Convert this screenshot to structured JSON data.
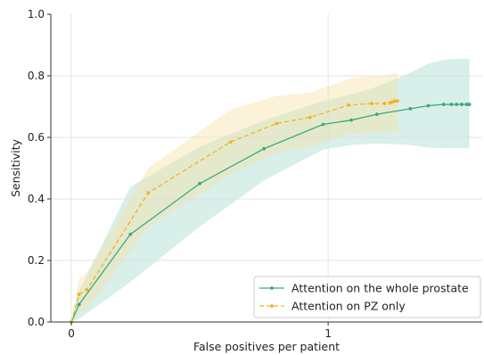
{
  "chart_data": {
    "type": "line",
    "title": "",
    "xlabel": "False positives per patient",
    "ylabel": "Sensitivity",
    "xlim": [
      -0.08,
      1.6
    ],
    "ylim": [
      0.0,
      1.0
    ],
    "xticks": [
      0,
      1
    ],
    "xtick_labels": [
      "0",
      "1"
    ],
    "yticks": [
      0.0,
      0.2,
      0.4,
      0.6,
      0.8,
      1.0
    ],
    "ytick_labels": [
      "0.0",
      "0.2",
      "0.4",
      "0.6",
      "0.8",
      "1.0"
    ],
    "grid": true,
    "legend_position": "bottom-right",
    "series": [
      {
        "name": "Attention on the whole prostate",
        "color": "#3aaa7e",
        "band_color": "#a8dcd0",
        "linestyle": "solid",
        "x": [
          0.0,
          0.03,
          0.23,
          0.5,
          0.75,
          0.98,
          1.09,
          1.19,
          1.32,
          1.39,
          1.45,
          1.48,
          1.5,
          1.52,
          1.54,
          1.55
        ],
        "y": [
          0.0,
          0.057,
          0.285,
          0.45,
          0.563,
          0.642,
          0.656,
          0.675,
          0.693,
          0.703,
          0.707,
          0.707,
          0.707,
          0.707,
          0.707,
          0.707
        ],
        "band_lower": [
          0.0,
          0.01,
          0.13,
          0.31,
          0.46,
          0.56,
          0.575,
          0.58,
          0.575,
          0.567,
          0.565,
          0.565,
          0.565,
          0.565,
          0.565,
          0.565
        ],
        "band_upper": [
          0.0,
          0.1,
          0.44,
          0.57,
          0.655,
          0.718,
          0.74,
          0.765,
          0.81,
          0.84,
          0.852,
          0.855,
          0.855,
          0.855,
          0.855,
          0.855
        ]
      },
      {
        "name": "Attention on PZ only",
        "color": "#f0b420",
        "band_color": "#f7e3a6",
        "linestyle": "dashed",
        "x": [
          0.0,
          0.03,
          0.06,
          0.3,
          0.62,
          0.8,
          0.93,
          1.08,
          1.17,
          1.22,
          1.24,
          1.25,
          1.26,
          1.27
        ],
        "y": [
          0.0,
          0.09,
          0.105,
          0.42,
          0.585,
          0.645,
          0.665,
          0.705,
          0.71,
          0.71,
          0.712,
          0.715,
          0.718,
          0.718
        ],
        "band_lower": [
          0.0,
          0.03,
          0.04,
          0.31,
          0.48,
          0.55,
          0.57,
          0.61,
          0.615,
          0.617,
          0.619,
          0.62,
          0.62,
          0.62
        ],
        "band_upper": [
          0.0,
          0.14,
          0.16,
          0.5,
          0.69,
          0.735,
          0.745,
          0.79,
          0.8,
          0.802,
          0.805,
          0.808,
          0.81,
          0.81
        ]
      }
    ]
  }
}
